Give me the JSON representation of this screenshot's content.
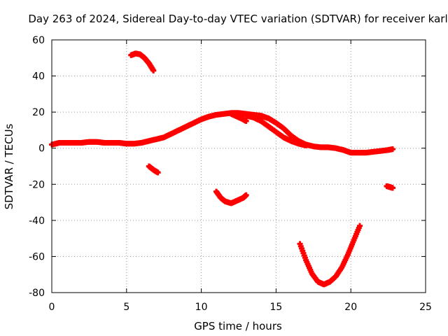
{
  "chart_data": {
    "type": "scatter",
    "title": "Day 263 of 2024, Sidereal Day-to-day VTEC variation (SDTVAR) for receiver karl",
    "xlabel": "GPS time / hours",
    "ylabel": "SDTVAR / TECUs",
    "xlim": [
      0,
      25
    ],
    "ylim": [
      -80,
      60
    ],
    "xticks": [
      0,
      5,
      10,
      15,
      20,
      25
    ],
    "yticks": [
      -80,
      -60,
      -40,
      -20,
      0,
      20,
      40,
      60
    ],
    "grid": true,
    "marker": "plus",
    "color": "#ff0000",
    "series": [
      {
        "name": "main-trace",
        "x": [
          0,
          0.5,
          1,
          1.5,
          2,
          2.5,
          3,
          3.5,
          4,
          4.5,
          5,
          5.5,
          6,
          6.5,
          7,
          7.5,
          8,
          8.5,
          9,
          9.5,
          10,
          10.5,
          11,
          11.5,
          12,
          12.5,
          13,
          13.5,
          14,
          14.5,
          15,
          15.5,
          16,
          16.5,
          17,
          17.5,
          18,
          18.5,
          19,
          19.5,
          20,
          20.5,
          21,
          21.5,
          22,
          22.5,
          22.8
        ],
        "y": [
          2,
          3,
          3,
          3,
          3,
          3.5,
          3.5,
          3,
          3,
          3,
          2.5,
          2.5,
          3,
          4,
          5,
          6,
          8,
          10,
          12,
          14,
          16,
          17.5,
          18.5,
          19,
          19.5,
          19.5,
          19,
          18.5,
          18,
          16.5,
          14,
          11,
          7,
          4,
          2,
          1,
          0.5,
          0.5,
          0,
          -1,
          -2.5,
          -2.5,
          -2.5,
          -2,
          -1.5,
          -1,
          -0.5
        ]
      },
      {
        "name": "lower-branch",
        "x": [
          13,
          13.5,
          14,
          14.5,
          15,
          15.5,
          16,
          16.5,
          17
        ],
        "y": [
          18,
          17,
          15,
          12,
          9,
          6,
          4,
          2.5,
          1.5
        ]
      },
      {
        "name": "dip-11-13",
        "x": [
          12,
          12.4,
          12.8,
          13
        ],
        "y": [
          19,
          17.5,
          16,
          15
        ]
      },
      {
        "name": "arc-5-7",
        "x": [
          5.3,
          5.6,
          5.9,
          6.2,
          6.5,
          6.8
        ],
        "y": [
          51.5,
          52.5,
          52,
          50,
          47,
          43
        ]
      },
      {
        "name": "seg-6-7",
        "x": [
          6.5,
          6.8,
          7.1
        ],
        "y": [
          -10,
          -12,
          -13.5
        ]
      },
      {
        "name": "arc-11-13",
        "x": [
          11,
          11.3,
          11.6,
          12,
          12.4,
          12.8,
          13
        ],
        "y": [
          -24,
          -27.5,
          -29.5,
          -30.5,
          -29,
          -27.5,
          -26
        ]
      },
      {
        "name": "v-trough-16-20",
        "x": [
          16.6,
          17,
          17.4,
          17.8,
          18.2,
          18.6,
          19,
          19.4,
          19.8,
          20.2,
          20.6
        ],
        "y": [
          -53,
          -62,
          -69.5,
          -74,
          -75.5,
          -74,
          -71,
          -66,
          -59,
          -51,
          -43
        ]
      },
      {
        "name": "seg-22-23",
        "x": [
          22.4,
          22.6,
          22.8
        ],
        "y": [
          -21,
          -21.5,
          -22
        ]
      }
    ]
  }
}
